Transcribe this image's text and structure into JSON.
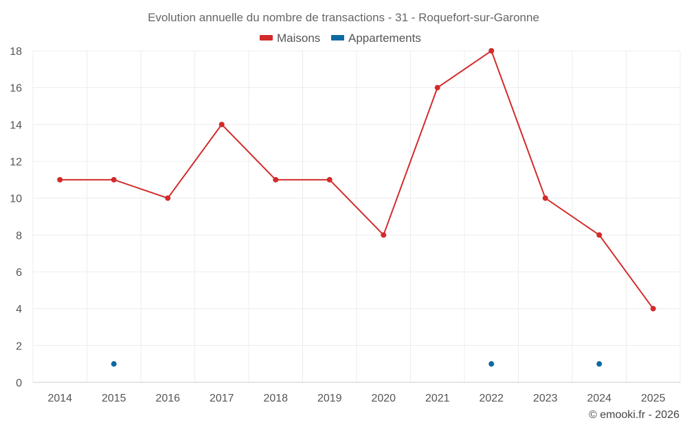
{
  "chart_data": {
    "type": "line",
    "title": "Evolution annuelle du nombre de transactions - 31 - Roquefort-sur-Garonne",
    "categories": [
      "2014",
      "2015",
      "2016",
      "2017",
      "2018",
      "2019",
      "2020",
      "2021",
      "2022",
      "2023",
      "2024",
      "2025"
    ],
    "yticks": [
      0,
      2,
      4,
      6,
      8,
      10,
      12,
      14,
      16,
      18
    ],
    "ylim": [
      0,
      18
    ],
    "grid": true,
    "legend_position": "top-center",
    "series": [
      {
        "name": "Maisons",
        "color": "#d32a2a",
        "values": [
          11,
          11,
          10,
          14,
          11,
          11,
          8,
          16,
          18,
          10,
          8,
          4
        ]
      },
      {
        "name": "Appartements",
        "color": "#0b6aa2",
        "values": [
          null,
          1,
          null,
          null,
          null,
          null,
          null,
          null,
          1,
          null,
          1,
          null
        ]
      }
    ],
    "credit": "© emooki.fr - 2026"
  }
}
